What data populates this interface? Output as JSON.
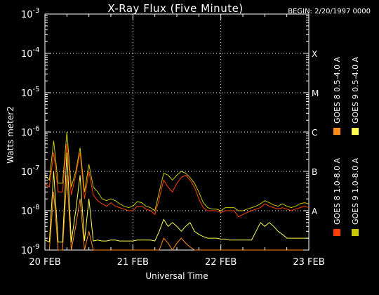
{
  "chart_data": {
    "type": "line",
    "title": "X-Ray Flux (Five Minute)",
    "begin_label": "BEGIN: 2/20/1997 0000",
    "xlabel": "Universal Time",
    "ylabel": "Watts meter2",
    "yscale": "log",
    "ylim": [
      1e-09,
      0.001
    ],
    "xlim": [
      0,
      3
    ],
    "x_ticks": [
      {
        "x": 0,
        "label": "20 FEB"
      },
      {
        "x": 1,
        "label": "21 FEB"
      },
      {
        "x": 2,
        "label": "22 FEB"
      },
      {
        "x": 3,
        "label": "23 FEB"
      }
    ],
    "y_ticks": [
      {
        "exp": -9,
        "label": "10",
        "sup": "-9"
      },
      {
        "exp": -8,
        "label": "10",
        "sup": "-8"
      },
      {
        "exp": -7,
        "label": "10",
        "sup": "-7"
      },
      {
        "exp": -6,
        "label": "10",
        "sup": "-6"
      },
      {
        "exp": -5,
        "label": "10",
        "sup": "-5"
      },
      {
        "exp": -4,
        "label": "10",
        "sup": "-4"
      },
      {
        "exp": -3,
        "label": "10",
        "sup": "-3"
      }
    ],
    "flare_classes": [
      {
        "label": "A",
        "exp": -8
      },
      {
        "label": "B",
        "exp": -7
      },
      {
        "label": "C",
        "exp": -6
      },
      {
        "label": "M",
        "exp": -5
      },
      {
        "label": "X",
        "exp": -4
      }
    ],
    "grid": true,
    "legend_position": "right",
    "series": [
      {
        "name": "GOES 8 1.0-8.0 A",
        "color": "#ff4000",
        "x": [
          0,
          0.05,
          0.1,
          0.15,
          0.2,
          0.25,
          0.3,
          0.35,
          0.4,
          0.45,
          0.5,
          0.55,
          0.6,
          0.65,
          0.7,
          0.75,
          0.8,
          0.85,
          0.9,
          0.95,
          1.0,
          1.05,
          1.1,
          1.15,
          1.2,
          1.25,
          1.3,
          1.35,
          1.4,
          1.45,
          1.5,
          1.55,
          1.6,
          1.65,
          1.7,
          1.75,
          1.8,
          1.85,
          1.9,
          1.95,
          2.0,
          2.05,
          2.1,
          2.15,
          2.2,
          2.25,
          2.3,
          2.35,
          2.4,
          2.45,
          2.5,
          2.55,
          2.6,
          2.65,
          2.7,
          2.75,
          2.8,
          2.85,
          2.9,
          2.95,
          3.0
        ],
        "y": [
          5e-08,
          4e-08,
          3e-07,
          3e-08,
          3e-08,
          5e-07,
          2.5e-08,
          8e-08,
          3e-07,
          2e-08,
          1e-07,
          2.5e-08,
          1.8e-08,
          1.5e-08,
          1.3e-08,
          1.6e-08,
          1.3e-08,
          1.2e-08,
          1.1e-08,
          1e-08,
          1e-08,
          1.3e-08,
          1.3e-08,
          1.1e-08,
          1e-08,
          8e-09,
          2e-08,
          6e-08,
          4e-08,
          3e-08,
          5e-08,
          7e-08,
          8e-08,
          6e-08,
          4e-08,
          2e-08,
          1.2e-08,
          1e-08,
          1e-08,
          1e-08,
          9e-09,
          1e-08,
          1e-08,
          1e-08,
          7e-09,
          8e-09,
          9e-09,
          1e-08,
          1.1e-08,
          1.2e-08,
          1.5e-08,
          1.3e-08,
          1.2e-08,
          1.1e-08,
          1.2e-08,
          1.1e-08,
          1e-08,
          1.1e-08,
          1.2e-08,
          1.3e-08,
          1.2e-08
        ]
      },
      {
        "name": "GOES 8 0.5-4.0 A",
        "color": "#ff8c1a",
        "x": [
          0,
          0.05,
          0.1,
          0.15,
          0.2,
          0.25,
          0.3,
          0.35,
          0.4,
          0.45,
          0.5,
          0.55,
          0.6,
          0.65,
          0.7,
          0.75,
          0.8,
          0.85,
          0.9,
          0.95,
          1.0,
          1.05,
          1.1,
          1.15,
          1.2,
          1.25,
          1.3,
          1.35,
          1.4,
          1.45,
          1.5,
          1.55,
          1.6,
          1.65,
          1.7,
          1.75,
          1.8,
          1.85,
          1.9,
          1.95,
          2.0,
          2.05,
          2.1,
          2.15,
          2.2,
          2.25,
          2.3,
          2.35,
          2.4,
          2.45,
          2.5,
          2.55,
          2.6,
          2.65,
          2.7,
          2.75,
          2.8,
          2.85,
          2.9,
          2.95,
          3.0
        ],
        "y": [
          1e-09,
          1e-09,
          3e-08,
          1e-09,
          1e-09,
          8e-08,
          1e-09,
          4e-09,
          2e-08,
          1e-09,
          3e-09,
          1e-09,
          1e-09,
          1e-09,
          1e-09,
          1e-09,
          1e-09,
          1e-09,
          1e-09,
          1e-09,
          1e-09,
          1e-09,
          1e-09,
          1e-09,
          1e-09,
          1e-09,
          1e-09,
          2e-09,
          1.5e-09,
          1e-09,
          1.5e-09,
          2e-09,
          1.5e-09,
          1.2e-09,
          1e-09,
          1e-09,
          1e-09,
          1e-09,
          1e-09,
          1e-09,
          1e-09,
          1e-09,
          1e-09,
          1e-09,
          1e-09,
          1e-09,
          1e-09,
          1e-09,
          1e-09,
          1e-09,
          1e-09,
          1e-09,
          1e-09,
          1e-09,
          1e-09,
          1e-09,
          1e-09,
          1e-09,
          1e-09,
          1e-09,
          1e-09
        ]
      },
      {
        "name": "GOES 9 1.0-8.0 A",
        "color": "#c8c800",
        "x": [
          0,
          0.05,
          0.1,
          0.15,
          0.2,
          0.25,
          0.3,
          0.35,
          0.4,
          0.45,
          0.5,
          0.55,
          0.6,
          0.65,
          0.7,
          0.75,
          0.8,
          0.85,
          0.9,
          0.95,
          1.0,
          1.05,
          1.1,
          1.15,
          1.2,
          1.25,
          1.3,
          1.35,
          1.4,
          1.45,
          1.5,
          1.55,
          1.6,
          1.65,
          1.7,
          1.75,
          1.8,
          1.85,
          1.9,
          1.95,
          2.0,
          2.05,
          2.1,
          2.15,
          2.2,
          2.25,
          2.3,
          2.35,
          2.4,
          2.45,
          2.5,
          2.55,
          2.6,
          2.65,
          2.7,
          2.75,
          2.8,
          2.85,
          2.9,
          2.95,
          3.0
        ],
        "y": [
          8e-08,
          6e-08,
          6e-07,
          5e-08,
          5e-08,
          1e-06,
          4e-08,
          1e-07,
          4e-07,
          3e-08,
          1.5e-07,
          4e-08,
          3e-08,
          2e-08,
          1.8e-08,
          2e-08,
          1.8e-08,
          1.5e-08,
          1.3e-08,
          1.2e-08,
          1.3e-08,
          1.7e-08,
          1.6e-08,
          1.3e-08,
          1.2e-08,
          1e-08,
          3e-08,
          9e-08,
          8e-08,
          6e-08,
          8e-08,
          1e-07,
          9e-08,
          7e-08,
          5e-08,
          3e-08,
          1.6e-08,
          1.2e-08,
          1.1e-08,
          1.1e-08,
          1e-08,
          1.2e-08,
          1.2e-08,
          1.2e-08,
          1e-08,
          1e-08,
          1.1e-08,
          1.2e-08,
          1.3e-08,
          1.5e-08,
          1.8e-08,
          1.6e-08,
          1.4e-08,
          1.3e-08,
          1.5e-08,
          1.3e-08,
          1.2e-08,
          1.3e-08,
          1.5e-08,
          1.6e-08,
          1.5e-08
        ]
      },
      {
        "name": "GOES 9 0.5-4.0 A",
        "color": "#ffff4d",
        "x": [
          0,
          0.05,
          0.1,
          0.15,
          0.2,
          0.25,
          0.3,
          0.35,
          0.4,
          0.45,
          0.5,
          0.55,
          0.6,
          0.65,
          0.7,
          0.75,
          0.8,
          0.85,
          0.9,
          0.95,
          1.0,
          1.05,
          1.1,
          1.15,
          1.2,
          1.25,
          1.3,
          1.35,
          1.4,
          1.45,
          1.5,
          1.55,
          1.6,
          1.65,
          1.7,
          1.75,
          1.8,
          1.85,
          1.9,
          1.95,
          2.0,
          2.05,
          2.1,
          2.15,
          2.2,
          2.25,
          2.3,
          2.35,
          2.4,
          2.45,
          2.5,
          2.55,
          2.6,
          2.65,
          2.7,
          2.75,
          2.8,
          2.85,
          2.9,
          2.95,
          3.0
        ],
        "y": [
          1.8e-09,
          1.6e-09,
          1e-07,
          1.6e-09,
          1.6e-09,
          3e-07,
          1.6e-09,
          1e-08,
          8e-08,
          1.7e-09,
          2e-08,
          1.7e-09,
          1.8e-09,
          1.7e-09,
          1.7e-09,
          1.8e-09,
          1.8e-09,
          1.7e-09,
          1.7e-09,
          1.7e-09,
          1.7e-09,
          1.8e-09,
          1.8e-09,
          1.8e-09,
          1.8e-09,
          1.7e-09,
          3e-09,
          6e-09,
          4e-09,
          5e-09,
          4e-09,
          3e-09,
          4e-09,
          5e-09,
          3e-09,
          2.5e-09,
          2.2e-09,
          2e-09,
          2e-09,
          2e-09,
          1.9e-09,
          1.9e-09,
          1.8e-09,
          1.8e-09,
          1.8e-09,
          1.8e-09,
          1.8e-09,
          1.8e-09,
          3e-09,
          5e-09,
          4e-09,
          5e-09,
          4e-09,
          3e-09,
          2.5e-09,
          2e-09,
          2e-09,
          2e-09,
          2e-09,
          2e-09,
          2e-09
        ]
      }
    ]
  }
}
